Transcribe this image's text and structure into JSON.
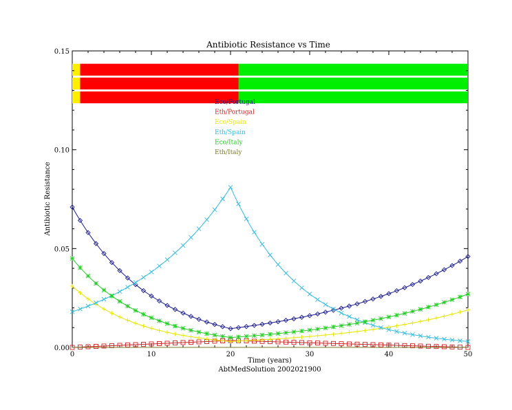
{
  "chart_data": {
    "type": "line",
    "title": "Antibiotic Resistance vs Time",
    "xlabel": "Time (years)",
    "ylabel": "Antibiotic Resistance",
    "footer": "AbtMedSolution 2002021900",
    "xlim": [
      0,
      50
    ],
    "ylim": [
      0,
      0.15
    ],
    "x_ticks": [
      0,
      10,
      20,
      30,
      40,
      50
    ],
    "x_tick_labels": [
      "0",
      "10",
      "20",
      "30",
      "40",
      "50"
    ],
    "y_ticks": [
      0,
      0.05,
      0.1,
      0.15
    ],
    "y_tick_labels": [
      "0.00",
      "0.05",
      "0.10",
      "0.15"
    ],
    "grid": false,
    "legend_position": "top-center",
    "series": [
      {
        "name": "Eco/Portugal",
        "color": "#1a1a8c",
        "marker": "diamond",
        "start": 0.071,
        "mid": 0.0095,
        "end": 0.046
      },
      {
        "name": "Eth/Portugal",
        "color": "#cc2222",
        "marker": "square",
        "start": 0.0,
        "mid": 0.0035,
        "end": 0.0
      },
      {
        "name": "Eco/Spain",
        "color": "#e6e600",
        "marker": "plus",
        "start": 0.031,
        "mid": 0.003,
        "end": 0.019
      },
      {
        "name": "Eth/Spain",
        "color": "#33bbdd",
        "marker": "x",
        "start": 0.018,
        "mid": 0.081,
        "end": 0.003
      },
      {
        "name": "Eco/Italy",
        "color": "#22cc22",
        "marker": "asterisk",
        "start": 0.045,
        "mid": 0.005,
        "end": 0.027
      },
      {
        "name": "Eth/Italy",
        "color": "#7a7a2a",
        "marker": "none",
        "start": 0.0,
        "mid": 0.0,
        "end": 0.0
      }
    ],
    "bands": [
      {
        "y_range": [
          0.1375,
          0.1435
        ],
        "segments": [
          {
            "color": "#ffee00",
            "x": [
              0,
              1
            ]
          },
          {
            "color": "#ff0000",
            "x": [
              1,
              21
            ]
          },
          {
            "color": "#00ee00",
            "x": [
              21,
              50
            ]
          }
        ]
      },
      {
        "y_range": [
          0.1305,
          0.1365
        ],
        "segments": [
          {
            "color": "#ffee00",
            "x": [
              0,
              1
            ]
          },
          {
            "color": "#ff0000",
            "x": [
              1,
              21
            ]
          },
          {
            "color": "#00ee00",
            "x": [
              21,
              50
            ]
          }
        ]
      },
      {
        "y_range": [
          0.1235,
          0.1295
        ],
        "segments": [
          {
            "color": "#ffee00",
            "x": [
              0,
              1
            ]
          },
          {
            "color": "#ff0000",
            "x": [
              1,
              21
            ]
          },
          {
            "color": "#00ee00",
            "x": [
              21,
              50
            ]
          }
        ]
      }
    ]
  }
}
